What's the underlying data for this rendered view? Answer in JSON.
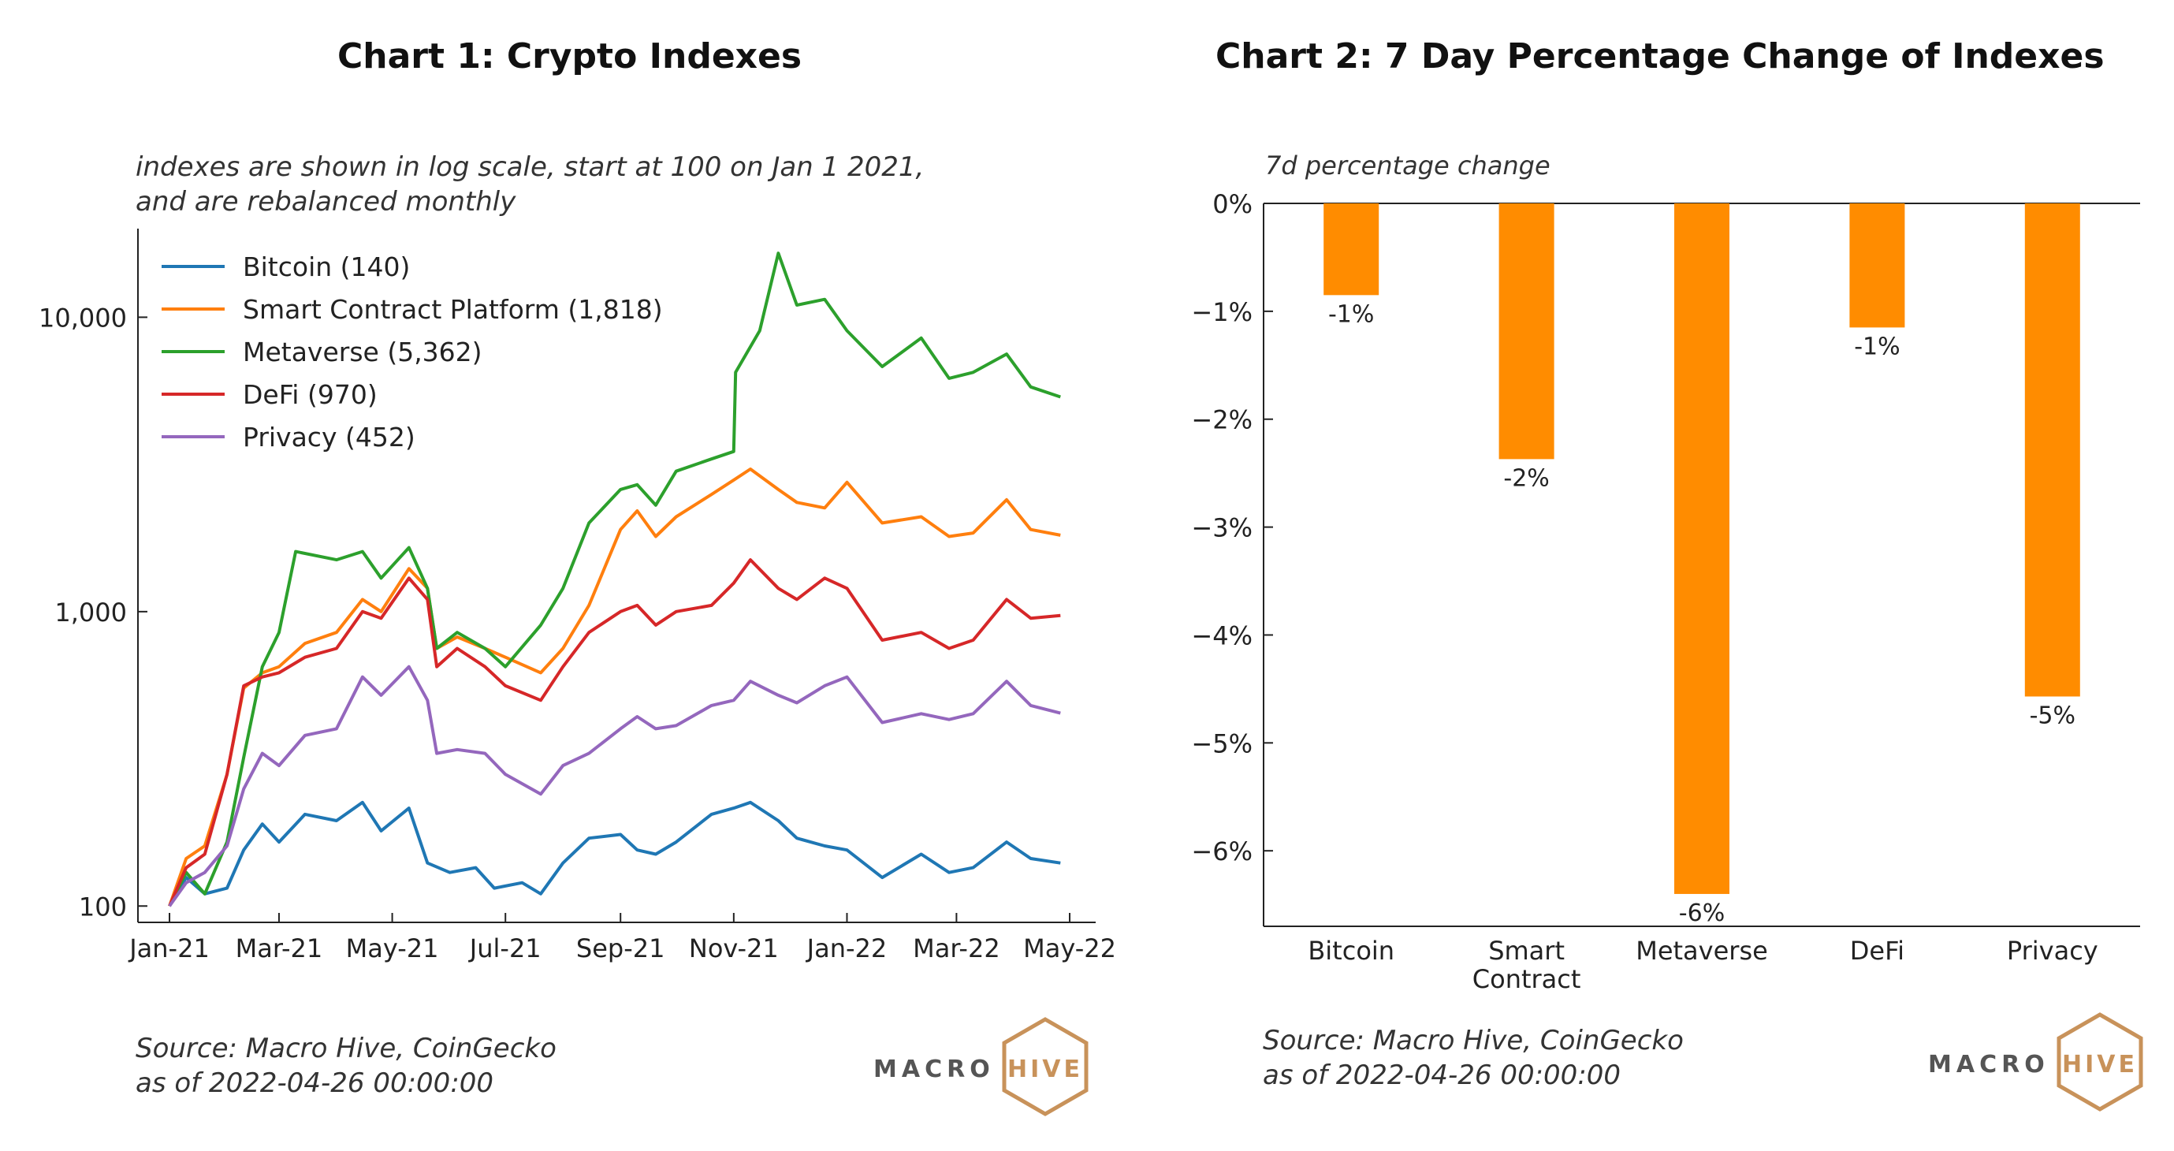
{
  "chart_data": [
    {
      "type": "line",
      "title": "Chart 1: Crypto Indexes",
      "subtitle": [
        "indexes are shown in log scale, start at 100 on Jan 1 2021,",
        "and are rebalanced monthly"
      ],
      "y_scale": "log",
      "ylim": [
        88,
        20000
      ],
      "y_ticks": [
        {
          "value": 100,
          "label": "100"
        },
        {
          "value": 1000,
          "label": "1,000"
        },
        {
          "value": 10000,
          "label": "10,000"
        }
      ],
      "x_ticks": [
        {
          "date": "2021-01-01",
          "label": "Jan-21"
        },
        {
          "date": "2021-03-01",
          "label": "Mar-21"
        },
        {
          "date": "2021-05-01",
          "label": "May-21"
        },
        {
          "date": "2021-07-01",
          "label": "Jul-21"
        },
        {
          "date": "2021-09-01",
          "label": "Sep-21"
        },
        {
          "date": "2021-11-01",
          "label": "Nov-21"
        },
        {
          "date": "2022-01-01",
          "label": "Jan-22"
        },
        {
          "date": "2022-03-01",
          "label": "Mar-22"
        },
        {
          "date": "2022-05-01",
          "label": "May-22"
        }
      ],
      "xlim": [
        "2020-12-15",
        "2022-05-15"
      ],
      "legend_position": "top-left",
      "grid": false,
      "series": [
        {
          "name": "Bitcoin (140)",
          "color": "#1f77b4",
          "points": [
            [
              "2021-01-01",
              100
            ],
            [
              "2021-01-10",
              125
            ],
            [
              "2021-01-20",
              110
            ],
            [
              "2021-02-01",
              115
            ],
            [
              "2021-02-10",
              155
            ],
            [
              "2021-02-20",
              190
            ],
            [
              "2021-03-01",
              165
            ],
            [
              "2021-03-15",
              205
            ],
            [
              "2021-04-01",
              195
            ],
            [
              "2021-04-15",
              225
            ],
            [
              "2021-04-25",
              180
            ],
            [
              "2021-05-10",
              215
            ],
            [
              "2021-05-20",
              140
            ],
            [
              "2021-06-01",
              130
            ],
            [
              "2021-06-15",
              135
            ],
            [
              "2021-06-25",
              115
            ],
            [
              "2021-07-10",
              120
            ],
            [
              "2021-07-20",
              110
            ],
            [
              "2021-08-01",
              140
            ],
            [
              "2021-08-15",
              170
            ],
            [
              "2021-09-01",
              175
            ],
            [
              "2021-09-10",
              155
            ],
            [
              "2021-09-20",
              150
            ],
            [
              "2021-10-01",
              165
            ],
            [
              "2021-10-20",
              205
            ],
            [
              "2021-11-01",
              215
            ],
            [
              "2021-11-10",
              225
            ],
            [
              "2021-11-25",
              195
            ],
            [
              "2021-12-05",
              170
            ],
            [
              "2021-12-20",
              160
            ],
            [
              "2022-01-01",
              155
            ],
            [
              "2022-01-20",
              125
            ],
            [
              "2022-02-10",
              150
            ],
            [
              "2022-02-25",
              130
            ],
            [
              "2022-03-10",
              135
            ],
            [
              "2022-03-28",
              165
            ],
            [
              "2022-04-10",
              145
            ],
            [
              "2022-04-26",
              140
            ]
          ]
        },
        {
          "name": "Smart Contract Platform (1,818)",
          "color": "#ff7f0e",
          "points": [
            [
              "2021-01-01",
              100
            ],
            [
              "2021-01-10",
              145
            ],
            [
              "2021-01-20",
              160
            ],
            [
              "2021-02-01",
              280
            ],
            [
              "2021-02-10",
              550
            ],
            [
              "2021-02-20",
              620
            ],
            [
              "2021-03-01",
              650
            ],
            [
              "2021-03-15",
              780
            ],
            [
              "2021-04-01",
              850
            ],
            [
              "2021-04-15",
              1100
            ],
            [
              "2021-04-25",
              1000
            ],
            [
              "2021-05-10",
              1400
            ],
            [
              "2021-05-20",
              1200
            ],
            [
              "2021-05-25",
              750
            ],
            [
              "2021-06-05",
              820
            ],
            [
              "2021-06-20",
              750
            ],
            [
              "2021-07-01",
              700
            ],
            [
              "2021-07-20",
              620
            ],
            [
              "2021-08-01",
              750
            ],
            [
              "2021-08-15",
              1050
            ],
            [
              "2021-09-01",
              1900
            ],
            [
              "2021-09-10",
              2200
            ],
            [
              "2021-09-20",
              1800
            ],
            [
              "2021-10-01",
              2100
            ],
            [
              "2021-10-20",
              2500
            ],
            [
              "2021-11-01",
              2800
            ],
            [
              "2021-11-10",
              3050
            ],
            [
              "2021-11-25",
              2600
            ],
            [
              "2021-12-05",
              2350
            ],
            [
              "2021-12-20",
              2250
            ],
            [
              "2022-01-01",
              2750
            ],
            [
              "2022-01-20",
              2000
            ],
            [
              "2022-02-10",
              2100
            ],
            [
              "2022-02-25",
              1800
            ],
            [
              "2022-03-10",
              1850
            ],
            [
              "2022-03-28",
              2400
            ],
            [
              "2022-04-10",
              1900
            ],
            [
              "2022-04-26",
              1818
            ]
          ]
        },
        {
          "name": "Metaverse (5,362)",
          "color": "#2ca02c",
          "points": [
            [
              "2021-01-01",
              100
            ],
            [
              "2021-01-10",
              130
            ],
            [
              "2021-01-20",
              110
            ],
            [
              "2021-02-01",
              165
            ],
            [
              "2021-02-10",
              320
            ],
            [
              "2021-02-20",
              650
            ],
            [
              "2021-03-01",
              850
            ],
            [
              "2021-03-10",
              1600
            ],
            [
              "2021-04-01",
              1500
            ],
            [
              "2021-04-15",
              1600
            ],
            [
              "2021-04-25",
              1300
            ],
            [
              "2021-05-10",
              1650
            ],
            [
              "2021-05-20",
              1200
            ],
            [
              "2021-05-25",
              750
            ],
            [
              "2021-06-05",
              850
            ],
            [
              "2021-06-20",
              750
            ],
            [
              "2021-07-01",
              650
            ],
            [
              "2021-07-20",
              900
            ],
            [
              "2021-08-01",
              1200
            ],
            [
              "2021-08-15",
              2000
            ],
            [
              "2021-09-01",
              2600
            ],
            [
              "2021-09-10",
              2700
            ],
            [
              "2021-09-20",
              2300
            ],
            [
              "2021-10-01",
              3000
            ],
            [
              "2021-10-20",
              3300
            ],
            [
              "2021-11-01",
              3500
            ],
            [
              "2021-11-02",
              6500
            ],
            [
              "2021-11-15",
              9000
            ],
            [
              "2021-11-25",
              16500
            ],
            [
              "2021-12-05",
              11000
            ],
            [
              "2021-12-20",
              11500
            ],
            [
              "2022-01-01",
              9000
            ],
            [
              "2022-01-20",
              6800
            ],
            [
              "2022-02-10",
              8500
            ],
            [
              "2022-02-25",
              6200
            ],
            [
              "2022-03-10",
              6500
            ],
            [
              "2022-03-28",
              7500
            ],
            [
              "2022-04-10",
              5800
            ],
            [
              "2022-04-26",
              5362
            ]
          ]
        },
        {
          "name": "DeFi (970)",
          "color": "#d62728",
          "points": [
            [
              "2021-01-01",
              100
            ],
            [
              "2021-01-10",
              135
            ],
            [
              "2021-01-20",
              150
            ],
            [
              "2021-02-01",
              280
            ],
            [
              "2021-02-10",
              560
            ],
            [
              "2021-02-20",
              600
            ],
            [
              "2021-03-01",
              620
            ],
            [
              "2021-03-15",
              700
            ],
            [
              "2021-04-01",
              750
            ],
            [
              "2021-04-15",
              1000
            ],
            [
              "2021-04-25",
              950
            ],
            [
              "2021-05-10",
              1300
            ],
            [
              "2021-05-20",
              1100
            ],
            [
              "2021-05-25",
              650
            ],
            [
              "2021-06-05",
              750
            ],
            [
              "2021-06-20",
              650
            ],
            [
              "2021-07-01",
              560
            ],
            [
              "2021-07-20",
              500
            ],
            [
              "2021-08-01",
              650
            ],
            [
              "2021-08-15",
              850
            ],
            [
              "2021-09-01",
              1000
            ],
            [
              "2021-09-10",
              1050
            ],
            [
              "2021-09-20",
              900
            ],
            [
              "2021-10-01",
              1000
            ],
            [
              "2021-10-20",
              1050
            ],
            [
              "2021-11-01",
              1250
            ],
            [
              "2021-11-10",
              1500
            ],
            [
              "2021-11-25",
              1200
            ],
            [
              "2021-12-05",
              1100
            ],
            [
              "2021-12-20",
              1300
            ],
            [
              "2022-01-01",
              1200
            ],
            [
              "2022-01-20",
              800
            ],
            [
              "2022-02-10",
              850
            ],
            [
              "2022-02-25",
              750
            ],
            [
              "2022-03-10",
              800
            ],
            [
              "2022-03-28",
              1100
            ],
            [
              "2022-04-10",
              950
            ],
            [
              "2022-04-26",
              970
            ]
          ]
        },
        {
          "name": "Privacy (452)",
          "color": "#9467bd",
          "points": [
            [
              "2021-01-01",
              100
            ],
            [
              "2021-01-10",
              120
            ],
            [
              "2021-01-20",
              130
            ],
            [
              "2021-02-01",
              160
            ],
            [
              "2021-02-10",
              250
            ],
            [
              "2021-02-20",
              330
            ],
            [
              "2021-03-01",
              300
            ],
            [
              "2021-03-15",
              380
            ],
            [
              "2021-04-01",
              400
            ],
            [
              "2021-04-15",
              600
            ],
            [
              "2021-04-25",
              520
            ],
            [
              "2021-05-10",
              650
            ],
            [
              "2021-05-20",
              500
            ],
            [
              "2021-05-25",
              330
            ],
            [
              "2021-06-05",
              340
            ],
            [
              "2021-06-20",
              330
            ],
            [
              "2021-07-01",
              280
            ],
            [
              "2021-07-20",
              240
            ],
            [
              "2021-08-01",
              300
            ],
            [
              "2021-08-15",
              330
            ],
            [
              "2021-09-01",
              400
            ],
            [
              "2021-09-10",
              440
            ],
            [
              "2021-09-20",
              400
            ],
            [
              "2021-10-01",
              410
            ],
            [
              "2021-10-20",
              480
            ],
            [
              "2021-11-01",
              500
            ],
            [
              "2021-11-10",
              580
            ],
            [
              "2021-11-25",
              520
            ],
            [
              "2021-12-05",
              490
            ],
            [
              "2021-12-20",
              560
            ],
            [
              "2022-01-01",
              600
            ],
            [
              "2022-01-20",
              420
            ],
            [
              "2022-02-10",
              450
            ],
            [
              "2022-02-25",
              430
            ],
            [
              "2022-03-10",
              450
            ],
            [
              "2022-03-28",
              580
            ],
            [
              "2022-04-10",
              480
            ],
            [
              "2022-04-26",
              452
            ]
          ]
        }
      ],
      "source": [
        "Source: Macro Hive, CoinGecko",
        "as of 2022-04-26 00:00:00"
      ]
    },
    {
      "type": "bar",
      "title": "Chart 2: 7 Day Percentage Change of Indexes",
      "ylabel": "7d percentage change",
      "ylim": [
        -6.7,
        0
      ],
      "y_ticks": [
        {
          "value": 0,
          "label": "0%"
        },
        {
          "value": -1,
          "label": "−1%"
        },
        {
          "value": -2,
          "label": "−2%"
        },
        {
          "value": -3,
          "label": "−3%"
        },
        {
          "value": -4,
          "label": "−4%"
        },
        {
          "value": -5,
          "label": "−5%"
        },
        {
          "value": -6,
          "label": "−6%"
        }
      ],
      "categories": [
        "Bitcoin",
        "Smart\nContract",
        "Metaverse",
        "DeFi",
        "Privacy"
      ],
      "values": [
        -0.85,
        -2.37,
        -6.4,
        -1.15,
        -4.57
      ],
      "data_labels": [
        "-1%",
        "-2%",
        "-6%",
        "-1%",
        "-5%"
      ],
      "bar_color": "#ff8c00",
      "grid": false,
      "source": [
        "Source: Macro Hive, CoinGecko",
        "as of 2022-04-26 00:00:00"
      ]
    }
  ],
  "logo": {
    "text_left": "MACRO",
    "text_right": "HIVE",
    "dark_color": "#555555",
    "accent_color": "#c8925a"
  }
}
